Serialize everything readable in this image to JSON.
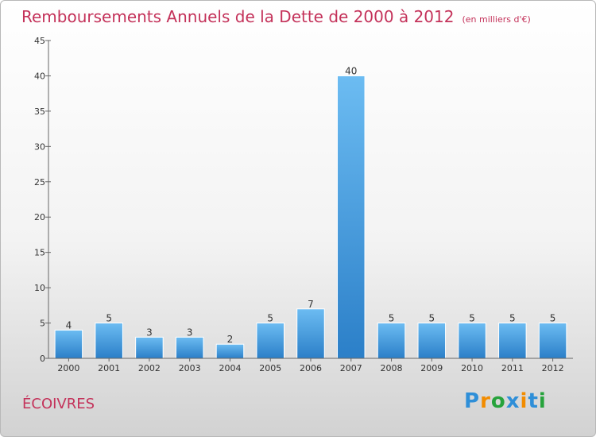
{
  "title": "Remboursements Annuels de la Dette de 2000 à 2012",
  "unit": "(en milliers d'€)",
  "place": "ÉCOIVRES",
  "logo": {
    "letters": [
      "P",
      "r",
      "o",
      "x",
      "i",
      "t",
      "i"
    ],
    "colors": [
      "#2f8fd8",
      "#f28c00",
      "#27a33c",
      "#2f8fd8",
      "#f28c00",
      "#2f8fd8",
      "#27a33c"
    ]
  },
  "chart_data": {
    "type": "bar",
    "categories": [
      "2000",
      "2001",
      "2002",
      "2003",
      "2004",
      "2005",
      "2006",
      "2007",
      "2008",
      "2009",
      "2010",
      "2011",
      "2012"
    ],
    "values": [
      4,
      5,
      3,
      3,
      2,
      5,
      7,
      40,
      5,
      5,
      5,
      5,
      5
    ],
    "ylim": [
      0,
      45
    ],
    "yticks": [
      0,
      5,
      10,
      15,
      20,
      25,
      30,
      35,
      40,
      45
    ],
    "bar_color_top": "#6cbcf2",
    "bar_color_bottom": "#2b7fc8"
  }
}
